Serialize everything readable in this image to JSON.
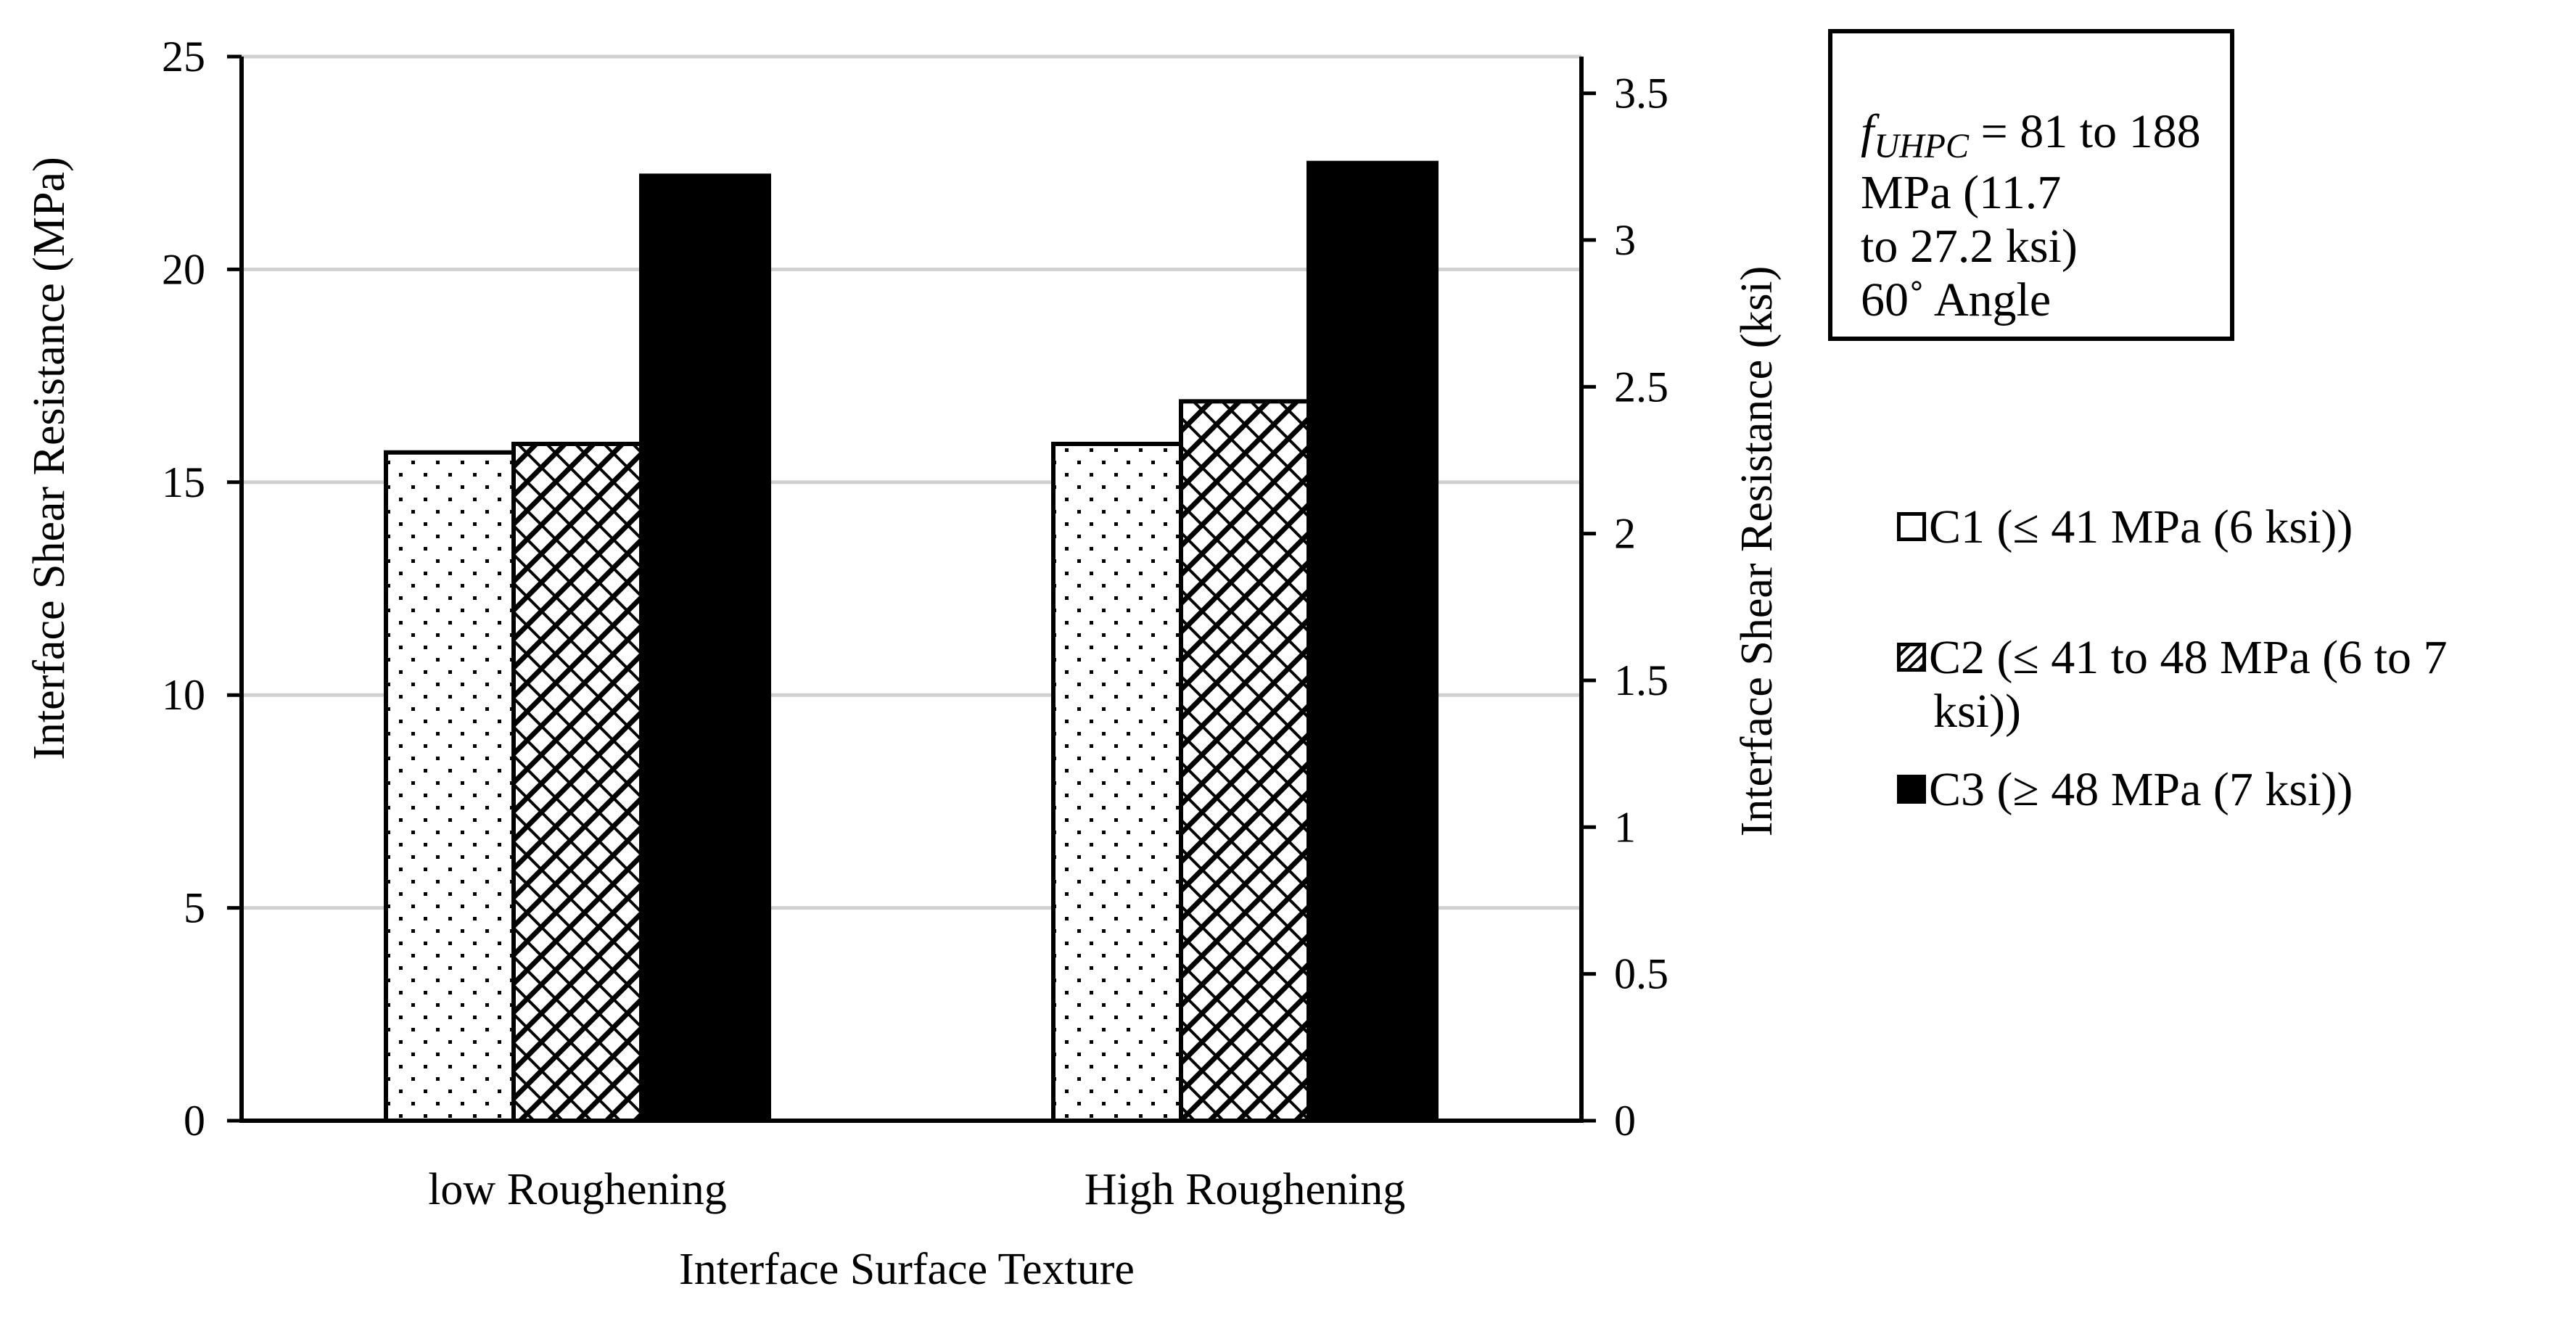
{
  "chart_data": {
    "type": "bar",
    "categories": [
      "low Roughening",
      "High Roughening"
    ],
    "series": [
      {
        "name": "C1 (≤ 41 MPa (6 ksi))",
        "values": [
          15.7,
          15.9
        ]
      },
      {
        "name": "C2 (≤ 41 to 48 MPa (6 to 7 ksi))",
        "values": [
          15.9,
          16.9
        ]
      },
      {
        "name": "C3 (≥ 48 MPa (7 ksi))",
        "values": [
          22.2,
          22.5
        ]
      }
    ],
    "xlabel": "Interface Surface Texture",
    "ylabel": "Interface Shear Resistance (MPa)",
    "ylabel_right": "Interface Shear Resistance (ksi)",
    "ylim": [
      0,
      25
    ],
    "yticks": [
      "0",
      "5",
      "10",
      "15",
      "20",
      "25"
    ],
    "ylim_right": [
      0,
      3.625
    ],
    "yticks_right": [
      "0",
      "0.5",
      "1",
      "1.5",
      "2",
      "2.5",
      "3",
      "3.5"
    ],
    "grid": true,
    "legend_position": "right"
  },
  "note": {
    "f_symbol": "f",
    "f_subscript": "UHPC",
    "line1_rest": " = 81 to 188 MPa (11.7",
    "line2": "to 27.2 ksi)",
    "line3": "60˚ Angle"
  },
  "legend": {
    "c1_label": "C1 (≤ 41 MPa (6 ksi))",
    "c2_label_line1": "C2 (≤ 41 to 48 MPa (6 to 7",
    "c2_label_line2": "ksi))",
    "c3_label": "C3 (≥ 48 MPa (7 ksi))"
  }
}
